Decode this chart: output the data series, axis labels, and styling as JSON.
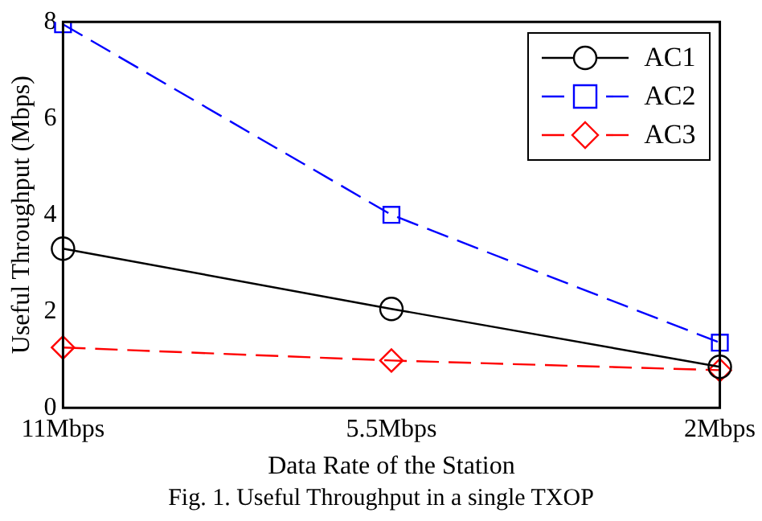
{
  "chart_data": {
    "type": "line",
    "xlabel": "Data Rate of the Station",
    "ylabel": "Useful Throughput (Mbps)",
    "categories": [
      "11Mbps",
      "5.5Mbps",
      "2Mbps"
    ],
    "series": [
      {
        "name": "AC1",
        "color": "#000000",
        "values": [
          3.3,
          2.05,
          0.85
        ],
        "marker": "circle",
        "line_style": "solid"
      },
      {
        "name": "AC2",
        "color": "#0000ff",
        "values": [
          7.95,
          4.0,
          1.35
        ],
        "marker": "square",
        "line_style": "dashed"
      },
      {
        "name": "AC3",
        "color": "#ff0000",
        "values": [
          1.25,
          0.98,
          0.78
        ],
        "marker": "diamond",
        "line_style": "dashed"
      }
    ],
    "ylim": [
      0,
      8
    ],
    "yticks": [
      0,
      2,
      4,
      6,
      8
    ],
    "grid": false,
    "legend": "top right",
    "annotations": [
      "Fig. 1. Useful Throughput in a single TXOP"
    ]
  }
}
